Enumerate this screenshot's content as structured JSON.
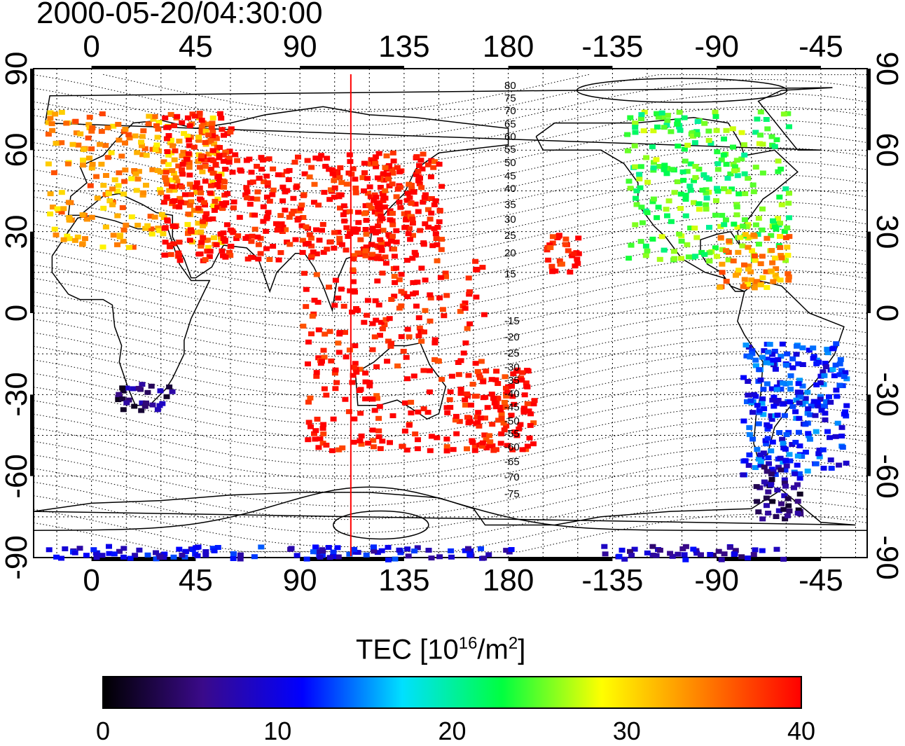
{
  "title": "2000-05-20/04:30:00",
  "map": {
    "x_ticks_top": [
      "0",
      "45",
      "90",
      "135",
      "180",
      "-135",
      "-90",
      "-45"
    ],
    "x_ticks_bottom": [
      "0",
      "45",
      "90",
      "135",
      "180",
      "-135",
      "-90",
      "-45"
    ],
    "y_ticks_left": [
      "90",
      "60",
      "30",
      "0",
      "-30",
      "-60",
      "-90"
    ],
    "y_ticks_right": [
      "90",
      "60",
      "30",
      "0",
      "-30",
      "-60",
      "-90"
    ],
    "subsolar_marker_color": "#ff0000",
    "contour_labels": [
      "80",
      "75",
      "70",
      "65",
      "60",
      "55",
      "50",
      "45",
      "40",
      "35",
      "30",
      "25",
      "20",
      "15",
      "-15",
      "-20",
      "-25",
      "-30",
      "-35",
      "-40",
      "-45",
      "-50",
      "-55",
      "-60",
      "-65",
      "-70",
      "-75"
    ]
  },
  "colorbar": {
    "title_main": "TEC  [10",
    "title_exp": "16",
    "title_mid": "/m",
    "title_exp2": "2",
    "title_end": "]",
    "ticks": [
      "0",
      "10",
      "20",
      "30",
      "40"
    ],
    "colors": [
      "#000000",
      "#3a0a8a",
      "#0000ff",
      "#00e0ff",
      "#00ff40",
      "#ffff00",
      "#ff8000",
      "#ff0000"
    ]
  },
  "chart_data": {
    "type": "heatmap",
    "title": "2000-05-20/04:30:00",
    "xlabel": "",
    "ylabel": "",
    "xlim": [
      -25,
      335
    ],
    "ylim": [
      -90,
      90
    ],
    "colorbar_range": [
      0,
      40
    ],
    "regions": [
      {
        "lon": [
          -20,
          55
        ],
        "lat": [
          25,
          75
        ],
        "tec": 33
      },
      {
        "lon": [
          30,
          60
        ],
        "lat": [
          20,
          75
        ],
        "tec": 40
      },
      {
        "lon": [
          60,
          130
        ],
        "lat": [
          20,
          60
        ],
        "tec": 40
      },
      {
        "lon": [
          120,
          150
        ],
        "lat": [
          20,
          60
        ],
        "tec": 40
      },
      {
        "lon": [
          90,
          170
        ],
        "lat": [
          -50,
          20
        ],
        "tec": 40
      },
      {
        "lon": [
          160,
          190
        ],
        "lat": [
          -50,
          -20
        ],
        "tec": 40
      },
      {
        "lon": [
          195,
          210
        ],
        "lat": [
          15,
          30
        ],
        "tec": 40
      },
      {
        "lon": [
          -130,
          -60
        ],
        "lat": [
          20,
          75
        ],
        "tec": 24
      },
      {
        "lon": [
          -90,
          -60
        ],
        "lat": [
          10,
          30
        ],
        "tec": 33
      },
      {
        "lon": [
          -80,
          -35
        ],
        "lat": [
          -60,
          -10
        ],
        "tec": 12
      },
      {
        "lon": [
          -75,
          -55
        ],
        "lat": [
          -75,
          -55
        ],
        "tec": 5
      },
      {
        "lon": [
          10,
          35
        ],
        "lat": [
          -35,
          -25
        ],
        "tec": 5
      },
      {
        "lon": [
          -20,
          180
        ],
        "lat": [
          -90,
          -85
        ],
        "tec": 10
      },
      {
        "lon": [
          -140,
          -60
        ],
        "lat": [
          -90,
          -85
        ],
        "tec": 8
      }
    ]
  }
}
